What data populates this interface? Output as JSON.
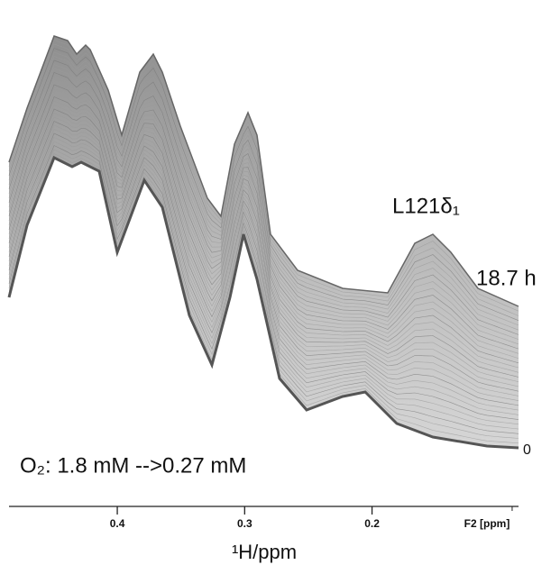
{
  "chart_data": {
    "type": "stacked-spectra",
    "xlabel": "¹H/ppm",
    "axis_unit_label": "F2 [ppm]",
    "xlim": [
      0.485,
      0.085
    ],
    "xticks": [
      0.4,
      0.3,
      0.2
    ],
    "annotations": [
      "L121δ₁",
      "18.7 h",
      "0",
      "O₂: 1.8 mM -->0.27 mM"
    ]
  }
}
